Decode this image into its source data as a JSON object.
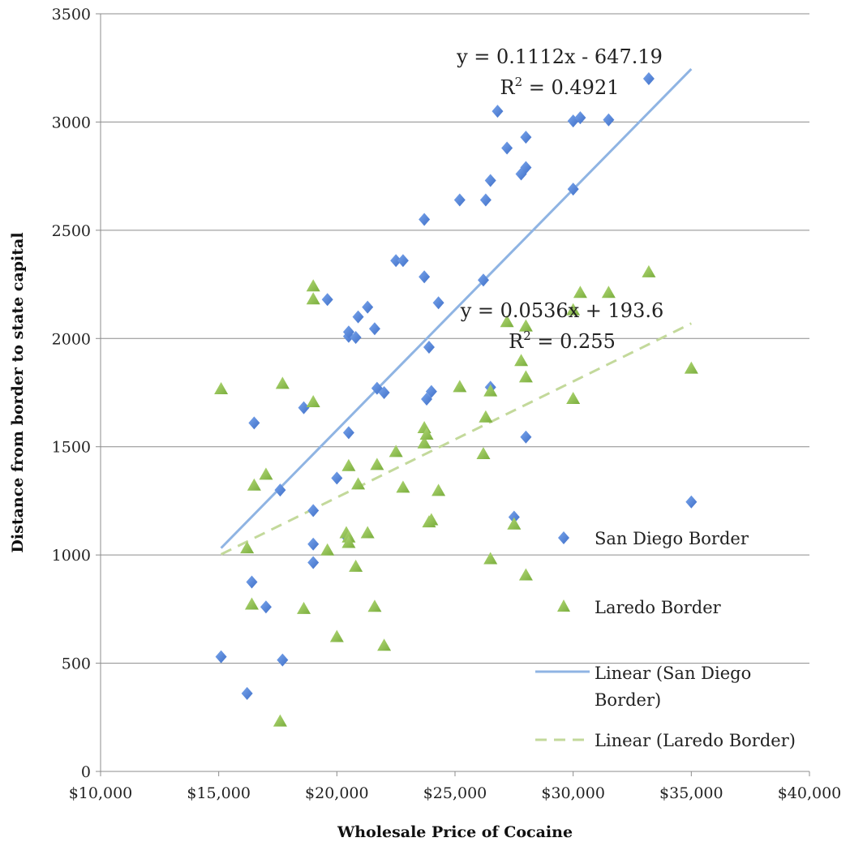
{
  "chart_data": {
    "type": "scatter",
    "xlabel": "Wholesale Price of Cocaine",
    "ylabel": "Distance from border to state capital",
    "xlim": [
      10000,
      40000
    ],
    "ylim": [
      0,
      3500
    ],
    "x_ticks": [
      10000,
      15000,
      20000,
      25000,
      30000,
      35000,
      40000
    ],
    "x_tick_labels": [
      "$10,000",
      "$15,000",
      "$20,000",
      "$25,000",
      "$30,000",
      "$35,000",
      "$40,000"
    ],
    "y_ticks": [
      0,
      500,
      1000,
      1500,
      2000,
      2500,
      3000,
      3500
    ],
    "y_tick_labels": [
      "0",
      "500",
      "1000",
      "1500",
      "2000",
      "2500",
      "3000",
      "3500"
    ],
    "grid": "horizontal",
    "legend_position": "right",
    "series": [
      {
        "name": "San Diego Border",
        "marker": "diamond",
        "color": "#4f81d9",
        "points": [
          [
            15100,
            530
          ],
          [
            16200,
            360
          ],
          [
            16400,
            875
          ],
          [
            16500,
            1610
          ],
          [
            17000,
            760
          ],
          [
            17600,
            1300
          ],
          [
            17700,
            515
          ],
          [
            18600,
            1680
          ],
          [
            19000,
            1205
          ],
          [
            19000,
            1050
          ],
          [
            19000,
            965
          ],
          [
            19600,
            2180
          ],
          [
            20000,
            1355
          ],
          [
            20400,
            1085
          ],
          [
            20500,
            2010
          ],
          [
            20500,
            2030
          ],
          [
            20500,
            1565
          ],
          [
            20800,
            2005
          ],
          [
            20900,
            2100
          ],
          [
            21300,
            2145
          ],
          [
            21600,
            2045
          ],
          [
            21700,
            1770
          ],
          [
            22000,
            1750
          ],
          [
            22500,
            2360
          ],
          [
            22800,
            2360
          ],
          [
            23700,
            2550
          ],
          [
            23700,
            2285
          ],
          [
            23800,
            1720
          ],
          [
            23900,
            1960
          ],
          [
            24000,
            1755
          ],
          [
            24300,
            2165
          ],
          [
            25200,
            2640
          ],
          [
            26200,
            2270
          ],
          [
            26300,
            2640
          ],
          [
            26500,
            2730
          ],
          [
            26500,
            1775
          ],
          [
            26800,
            3050
          ],
          [
            27200,
            2880
          ],
          [
            27500,
            1175
          ],
          [
            27800,
            2760
          ],
          [
            28000,
            2930
          ],
          [
            28000,
            2790
          ],
          [
            28000,
            1545
          ],
          [
            30000,
            3005
          ],
          [
            30000,
            2690
          ],
          [
            30300,
            3020
          ],
          [
            31500,
            3010
          ],
          [
            33200,
            3200
          ],
          [
            35000,
            1245
          ]
        ]
      },
      {
        "name": "Laredo Border",
        "marker": "triangle",
        "color": "#92c353",
        "points": [
          [
            15100,
            1765
          ],
          [
            16200,
            1030
          ],
          [
            16400,
            770
          ],
          [
            16500,
            1320
          ],
          [
            17000,
            1370
          ],
          [
            17600,
            230
          ],
          [
            17700,
            1790
          ],
          [
            18600,
            750
          ],
          [
            19000,
            2240
          ],
          [
            19000,
            2180
          ],
          [
            19000,
            1705
          ],
          [
            19600,
            1020
          ],
          [
            20000,
            620
          ],
          [
            20400,
            1100
          ],
          [
            20500,
            1080
          ],
          [
            20500,
            1055
          ],
          [
            20500,
            1410
          ],
          [
            20800,
            945
          ],
          [
            20900,
            1325
          ],
          [
            21300,
            1100
          ],
          [
            21600,
            760
          ],
          [
            21700,
            1415
          ],
          [
            22000,
            580
          ],
          [
            22500,
            1475
          ],
          [
            22800,
            1310
          ],
          [
            23700,
            1585
          ],
          [
            23700,
            1515
          ],
          [
            23800,
            1555
          ],
          [
            23900,
            1150
          ],
          [
            24000,
            1160
          ],
          [
            24300,
            1295
          ],
          [
            25200,
            1775
          ],
          [
            26200,
            1465
          ],
          [
            26300,
            1635
          ],
          [
            26500,
            980
          ],
          [
            26500,
            1755
          ],
          [
            27200,
            2075
          ],
          [
            27500,
            1140
          ],
          [
            27800,
            1895
          ],
          [
            28000,
            1820
          ],
          [
            28000,
            2055
          ],
          [
            28000,
            905
          ],
          [
            30000,
            1720
          ],
          [
            30000,
            2130
          ],
          [
            30300,
            2210
          ],
          [
            31500,
            2210
          ],
          [
            33200,
            2305
          ],
          [
            35000,
            1860
          ]
        ]
      }
    ],
    "trendlines": [
      {
        "name": "Linear (San Diego Border)",
        "slope": 0.1112,
        "intercept": -647.19,
        "x_range": [
          15100,
          35000
        ],
        "style": "solid",
        "color": "#8fb4e3",
        "equation": "y = 0.1112x - 647.19",
        "r2_prefix": "R",
        "r2_suffix": " = 0.4921"
      },
      {
        "name": "Linear (Laredo Border)",
        "slope": 0.0536,
        "intercept": 193.6,
        "x_range": [
          15100,
          35000
        ],
        "style": "dashed",
        "color": "#c3d99b",
        "equation": "y = 0.0536x + 193.6",
        "r2_prefix": "R",
        "r2_suffix": " = 0.255"
      }
    ],
    "legend": [
      {
        "label": "San Diego Border"
      },
      {
        "label": "Laredo Border"
      },
      {
        "label_line1": "Linear (San Diego",
        "label_line2": "Border)"
      },
      {
        "label": "Linear (Laredo Border)"
      }
    ]
  }
}
